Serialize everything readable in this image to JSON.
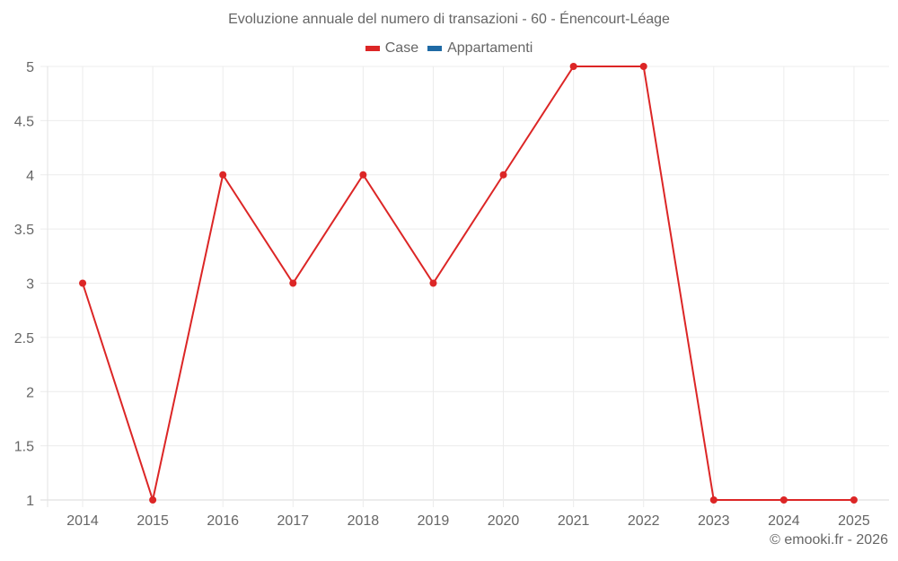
{
  "title": "Evoluzione annuale del numero di transazioni - 60 - Énencourt-Léage",
  "legend": [
    {
      "label": "Case",
      "color": "#dc2626"
    },
    {
      "label": "Appartamenti",
      "color": "#1f6aa5"
    }
  ],
  "credit": "© emooki.fr - 2026",
  "chart_data": {
    "type": "line",
    "title": "Evoluzione annuale del numero di transazioni - 60 - Énencourt-Léage",
    "xlabel": "",
    "ylabel": "",
    "categories": [
      "2014",
      "2015",
      "2016",
      "2017",
      "2018",
      "2019",
      "2020",
      "2021",
      "2022",
      "2023",
      "2024",
      "2025"
    ],
    "series": [
      {
        "name": "Case",
        "color": "#dc2626",
        "values": [
          3,
          1,
          4,
          3,
          4,
          3,
          4,
          5,
          5,
          1,
          1,
          1
        ]
      },
      {
        "name": "Appartamenti",
        "color": "#1f6aa5",
        "values": []
      }
    ],
    "ylim": [
      1,
      5
    ],
    "yticks": [
      "1",
      "1.5",
      "2",
      "2.5",
      "3",
      "3.5",
      "4",
      "4.5",
      "5"
    ],
    "grid": true,
    "legend_position": "top"
  }
}
